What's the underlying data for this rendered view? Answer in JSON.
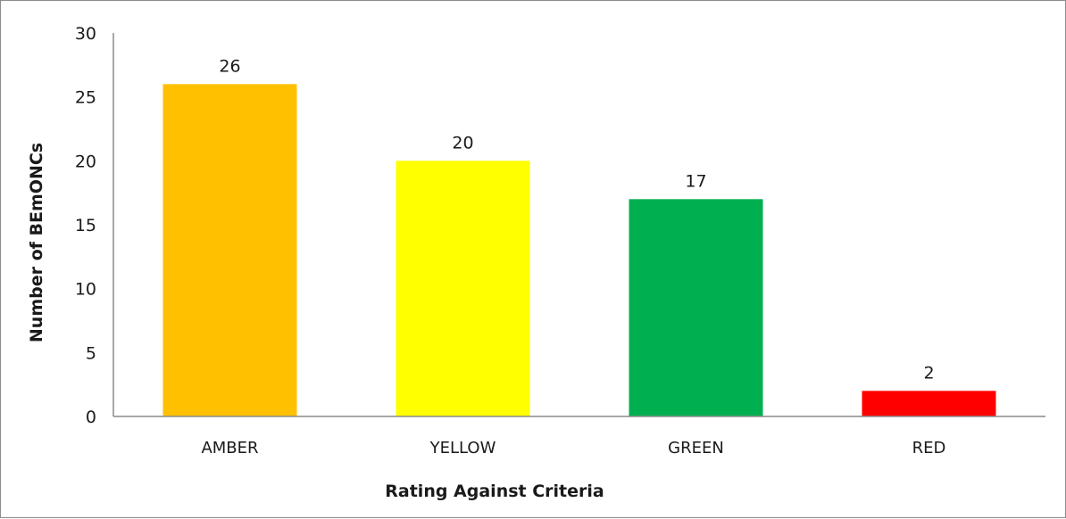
{
  "chart_data": {
    "type": "bar",
    "title": "",
    "xlabel": "Rating Against Criteria",
    "ylabel": "Number of BEmONCs",
    "categories": [
      "AMBER",
      "YELLOW",
      "GREEN",
      "RED"
    ],
    "values": [
      26,
      20,
      17,
      2
    ],
    "data_labels": [
      "26",
      "20",
      "17",
      "2"
    ],
    "colors": [
      "#ffc000",
      "#ffff00",
      "#00b050",
      "#ff0000"
    ],
    "ylim": [
      0,
      30
    ],
    "yticks": [
      0,
      5,
      10,
      15,
      20,
      25,
      30
    ],
    "grid": false,
    "legend": "none"
  }
}
